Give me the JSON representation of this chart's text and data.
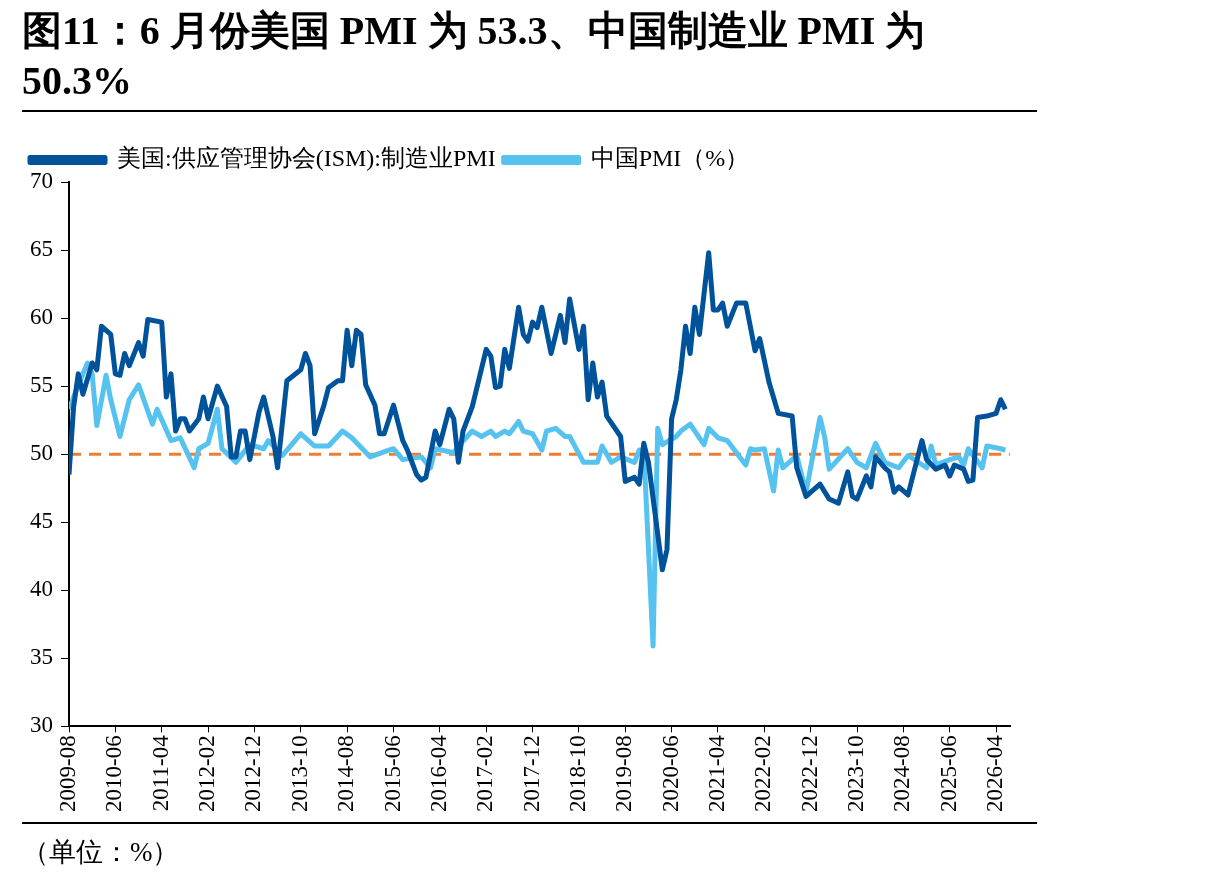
{
  "chart_data": {
    "type": "line",
    "title": "图11：6 月份美国 PMI 为 53.3、中国制造业 PMI 为 50.3%",
    "annotations": [
      "（单位：%）"
    ],
    "xlim": [
      "2009-08",
      "2026-07"
    ],
    "xticks": [
      "2009-08",
      "2010-06",
      "2011-04",
      "2012-02",
      "2012-12",
      "2013-10",
      "2014-08",
      "2015-06",
      "2016-04",
      "2017-02",
      "2017-12",
      "2018-10",
      "2019-08",
      "2020-06",
      "2021-04",
      "2022-02",
      "2022-12",
      "2023-10",
      "2024-08",
      "2025-06",
      "2026-04"
    ],
    "ylim": [
      30,
      70
    ],
    "yticks": [
      30,
      35,
      40,
      45,
      50,
      55,
      60,
      65,
      70
    ],
    "grid": false,
    "legend": "top left",
    "marker": "none",
    "line_style": "solid",
    "ref_lines": [
      {
        "axis": "y",
        "value": 50,
        "color": "#ed7d31",
        "line_style": "dashed"
      }
    ],
    "series": [
      {
        "name": "美国:供应管理协会(ISM):制造业PMI",
        "color": "#00529b",
        "x": [
          "2009-08",
          "2009-09",
          "2009-10",
          "2009-11",
          "2010-01",
          "2010-02",
          "2010-03",
          "2010-05",
          "2010-06",
          "2010-07",
          "2010-08",
          "2010-09",
          "2010-11",
          "2010-12",
          "2011-01",
          "2011-04",
          "2011-05",
          "2011-06",
          "2011-07",
          "2011-08",
          "2011-09",
          "2011-10",
          "2011-12",
          "2012-01",
          "2012-02",
          "2012-04",
          "2012-06",
          "2012-07",
          "2012-08",
          "2012-09",
          "2012-10",
          "2012-11",
          "2013-01",
          "2013-02",
          "2013-04",
          "2013-05",
          "2013-07",
          "2013-10",
          "2013-11",
          "2013-12",
          "2014-01",
          "2014-03",
          "2014-04",
          "2014-06",
          "2014-07",
          "2014-08",
          "2014-09",
          "2014-10",
          "2014-11",
          "2014-12",
          "2015-02",
          "2015-03",
          "2015-04",
          "2015-06",
          "2015-08",
          "2015-09",
          "2015-11",
          "2015-12",
          "2016-01",
          "2016-03",
          "2016-04",
          "2016-06",
          "2016-07",
          "2016-08",
          "2016-09",
          "2016-11",
          "2017-02",
          "2017-03",
          "2017-04",
          "2017-05",
          "2017-06",
          "2017-07",
          "2017-09",
          "2017-10",
          "2017-11",
          "2017-12",
          "2018-01",
          "2018-02",
          "2018-04",
          "2018-06",
          "2018-07",
          "2018-08",
          "2018-10",
          "2018-11",
          "2018-12",
          "2019-01",
          "2019-02",
          "2019-03",
          "2019-04",
          "2019-07",
          "2019-08",
          "2019-10",
          "2019-11",
          "2019-12",
          "2020-01",
          "2020-04",
          "2020-05",
          "2020-06",
          "2020-07",
          "2020-08",
          "2020-09",
          "2020-10",
          "2020-11",
          "2020-12",
          "2021-02",
          "2021-03",
          "2021-04",
          "2021-05",
          "2021-06",
          "2021-08",
          "2021-10",
          "2021-12",
          "2022-01",
          "2022-03",
          "2022-05",
          "2022-08",
          "2022-09",
          "2022-11",
          "2023-02",
          "2023-04",
          "2023-06",
          "2023-08",
          "2023-09",
          "2023-10",
          "2023-12",
          "2024-01",
          "2024-02",
          "2024-04",
          "2024-05",
          "2024-06",
          "2024-07",
          "2024-09",
          "2024-12",
          "2025-01",
          "2025-03",
          "2025-05",
          "2025-06",
          "2025-07",
          "2025-09",
          "2025-10",
          "2025-11",
          "2025-12",
          "2026-02",
          "2026-04",
          "2026-05",
          "2026-06"
        ],
        "values": [
          48.5,
          53.5,
          55.9,
          54.4,
          56.7,
          56.2,
          59.4,
          58.8,
          55.9,
          55.8,
          57.4,
          56.5,
          58.2,
          57.2,
          59.9,
          59.7,
          54.2,
          55.9,
          51.7,
          52.6,
          52.6,
          51.7,
          52.6,
          54.2,
          52.6,
          55.0,
          53.5,
          49.8,
          49.8,
          51.7,
          51.7,
          49.6,
          53.1,
          54.2,
          51.3,
          49.0,
          55.4,
          56.2,
          57.4,
          56.5,
          51.5,
          53.6,
          54.9,
          55.4,
          55.4,
          59.1,
          56.5,
          59.1,
          58.8,
          55.1,
          53.6,
          51.5,
          51.5,
          53.6,
          51.0,
          50.3,
          48.5,
          48.1,
          48.3,
          51.7,
          50.7,
          53.3,
          52.6,
          49.4,
          51.7,
          53.5,
          57.7,
          57.2,
          54.9,
          55.0,
          57.7,
          56.3,
          60.8,
          58.8,
          58.3,
          59.7,
          59.3,
          60.8,
          57.4,
          60.2,
          58.2,
          61.4,
          57.7,
          59.4,
          54.0,
          56.7,
          54.2,
          55.3,
          52.8,
          51.3,
          48.0,
          48.3,
          47.8,
          50.8,
          49.4,
          41.5,
          43.0,
          52.6,
          54.0,
          56.2,
          59.4,
          57.4,
          60.8,
          58.8,
          64.8,
          60.6,
          60.6,
          61.1,
          59.4,
          61.1,
          61.1,
          57.6,
          58.5,
          55.3,
          53.0,
          52.8,
          49.0,
          46.9,
          47.8,
          46.7,
          46.4,
          48.7,
          46.9,
          46.7,
          48.4,
          47.6,
          49.8,
          49.0,
          48.7,
          47.2,
          47.6,
          47.0,
          51.0,
          49.6,
          48.9,
          49.2,
          48.4,
          49.2,
          48.9,
          48.0,
          48.1,
          52.7,
          52.8,
          53.0,
          54.0,
          53.3
        ]
      },
      {
        "name": "中国PMI（%）",
        "color": "#55c2f0",
        "x": [
          "2009-08",
          "2009-10",
          "2009-12",
          "2010-01",
          "2010-02",
          "2010-04",
          "2010-05",
          "2010-07",
          "2010-09",
          "2010-11",
          "2011-02",
          "2011-03",
          "2011-06",
          "2011-08",
          "2011-11",
          "2011-12",
          "2012-02",
          "2012-04",
          "2012-05",
          "2012-08",
          "2012-11",
          "2013-02",
          "2013-03",
          "2013-06",
          "2013-10",
          "2014-01",
          "2014-04",
          "2014-07",
          "2014-09",
          "2015-01",
          "2015-05",
          "2015-06",
          "2015-08",
          "2015-12",
          "2016-02",
          "2016-03",
          "2016-07",
          "2016-08",
          "2016-11",
          "2017-01",
          "2017-03",
          "2017-04",
          "2017-06",
          "2017-07",
          "2017-09",
          "2017-10",
          "2017-12",
          "2018-02",
          "2018-03",
          "2018-05",
          "2018-07",
          "2018-08",
          "2018-11",
          "2019-02",
          "2019-03",
          "2019-05",
          "2019-07",
          "2019-10",
          "2019-11",
          "2019-12",
          "2020-02",
          "2020-03",
          "2020-04",
          "2020-07",
          "2020-08",
          "2020-10",
          "2021-01",
          "2021-02",
          "2021-04",
          "2021-06",
          "2021-10",
          "2021-11",
          "2021-12",
          "2022-02",
          "2022-04",
          "2022-05",
          "2022-06",
          "2022-08",
          "2022-09",
          "2022-11",
          "2023-02",
          "2023-03",
          "2023-04",
          "2023-08",
          "2023-10",
          "2023-12",
          "2024-02",
          "2024-04",
          "2024-07",
          "2024-09",
          "2025-01",
          "2025-02",
          "2025-03",
          "2025-06",
          "2025-08",
          "2025-09",
          "2025-10",
          "2026-01",
          "2026-02",
          "2026-05",
          "2026-06"
        ],
        "values": [
          53.3,
          55.1,
          56.7,
          55.9,
          52.1,
          55.8,
          54.0,
          51.3,
          54.0,
          55.1,
          52.2,
          53.3,
          51.0,
          51.2,
          49.0,
          50.4,
          50.8,
          53.3,
          50.4,
          49.4,
          50.7,
          50.4,
          51.0,
          49.9,
          51.5,
          50.6,
          50.6,
          51.7,
          51.2,
          49.8,
          50.3,
          50.4,
          49.6,
          49.8,
          49.0,
          50.4,
          50.1,
          50.6,
          51.7,
          51.3,
          51.7,
          51.3,
          51.7,
          51.5,
          52.4,
          51.7,
          51.5,
          50.3,
          51.7,
          51.9,
          51.3,
          51.3,
          49.4,
          49.4,
          50.6,
          49.4,
          49.8,
          49.4,
          50.3,
          50.3,
          35.9,
          51.9,
          50.7,
          51.3,
          51.7,
          52.2,
          50.7,
          51.9,
          51.2,
          51.0,
          49.2,
          50.4,
          50.3,
          50.4,
          47.3,
          50.3,
          49.0,
          49.6,
          49.9,
          47.2,
          52.7,
          51.3,
          48.9,
          50.4,
          49.4,
          49.0,
          50.8,
          49.4,
          49.0,
          49.9,
          49.0,
          50.6,
          49.2,
          49.6,
          49.8,
          49.2,
          50.4,
          49.0,
          50.6,
          50.4,
          50.3
        ]
      }
    ]
  }
}
